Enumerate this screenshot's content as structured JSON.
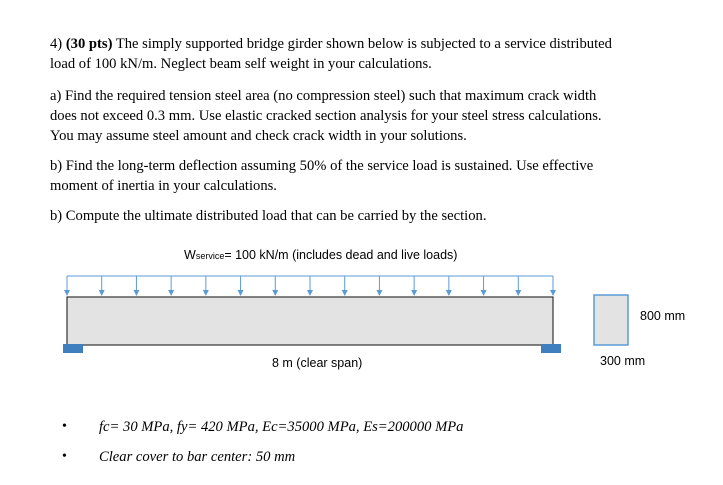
{
  "problem": {
    "title_lines": [
      {
        "lead": "4) ",
        "bold": "(30 pts)",
        "rest": " The simply supported bridge girder shown below is subjected to a service distributed"
      },
      {
        "lead": "",
        "bold": "",
        "rest": "load of 100 kN/m. Neglect beam self weight in your calculations."
      }
    ],
    "part_a_lines": [
      "a) Find the required tension steel area (no compression steel) such that maximum crack width",
      "does not exceed 0.3 mm. Use elastic cracked section analysis for your steel stress calculations.",
      "You may assume steel amount and check crack width in your solutions."
    ],
    "part_b_lines": [
      "b) Find the long-term deflection assuming 50% of the service load is sustained. Use effective",
      "moment of inertia in your calculations."
    ],
    "part_c_lines": [
      "b) Compute the ultimate distributed load that can be carried by the section."
    ]
  },
  "diagram": {
    "load_label_main": "W",
    "load_label_sub": "service",
    "load_label_rest": "= 100 kN/m (includes dead and live loads)",
    "span_label": "8 m (clear span)",
    "section_depth_label": "800 mm",
    "section_width_label": "300 mm",
    "load_arrow_count": 15,
    "colors": {
      "arrow": "#5b9bd5",
      "beam_fill": "#e3e3e3",
      "beam_stroke": "#333333",
      "support": "#3f7fbf"
    }
  },
  "properties": [
    "fc= 30 MPa, fy= 420 MPa, Ec=35000 MPa, Es=200000 MPa",
    "Clear cover to bar center: 50 mm"
  ],
  "bullet_symbol": "•"
}
